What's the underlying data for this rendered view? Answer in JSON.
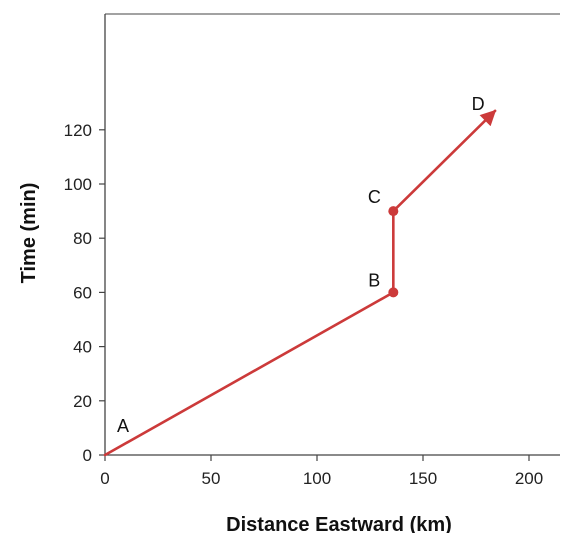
{
  "chart_data": {
    "type": "line",
    "xlabel": "Distance Eastward (km)",
    "ylabel": "Time (min)",
    "xlim": [
      0,
      215
    ],
    "ylim": [
      0,
      160
    ],
    "xticks": [
      0,
      50,
      100,
      150,
      200
    ],
    "yticks": [
      0,
      20,
      40,
      60,
      80,
      100,
      120
    ],
    "grid": false,
    "series": [
      {
        "color": "#cc3a3a",
        "end_arrow": true,
        "points": [
          {
            "label": "A",
            "x": 0,
            "y": 0,
            "marker": false
          },
          {
            "label": "B",
            "x": 136,
            "y": 60,
            "marker": true
          },
          {
            "label": "C",
            "x": 136,
            "y": 90,
            "marker": true
          },
          {
            "label": "D",
            "x": 184,
            "y": 127,
            "marker": false
          }
        ]
      }
    ]
  }
}
